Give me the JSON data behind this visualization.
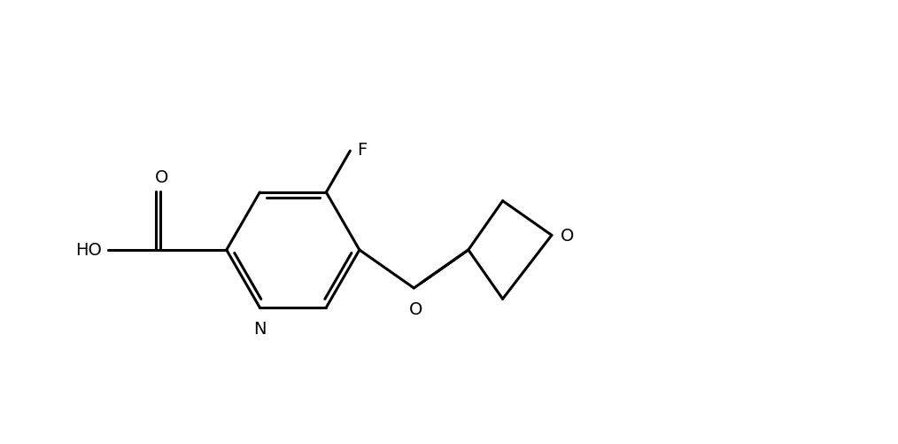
{
  "background_color": "#ffffff",
  "line_color": "#000000",
  "line_width": 2.2,
  "label_fontsize": 14,
  "fig_width": 10.14,
  "fig_height": 5.02,
  "dpi": 100,
  "xlim": [
    0.0,
    10.14
  ],
  "ylim": [
    0.0,
    5.02
  ]
}
